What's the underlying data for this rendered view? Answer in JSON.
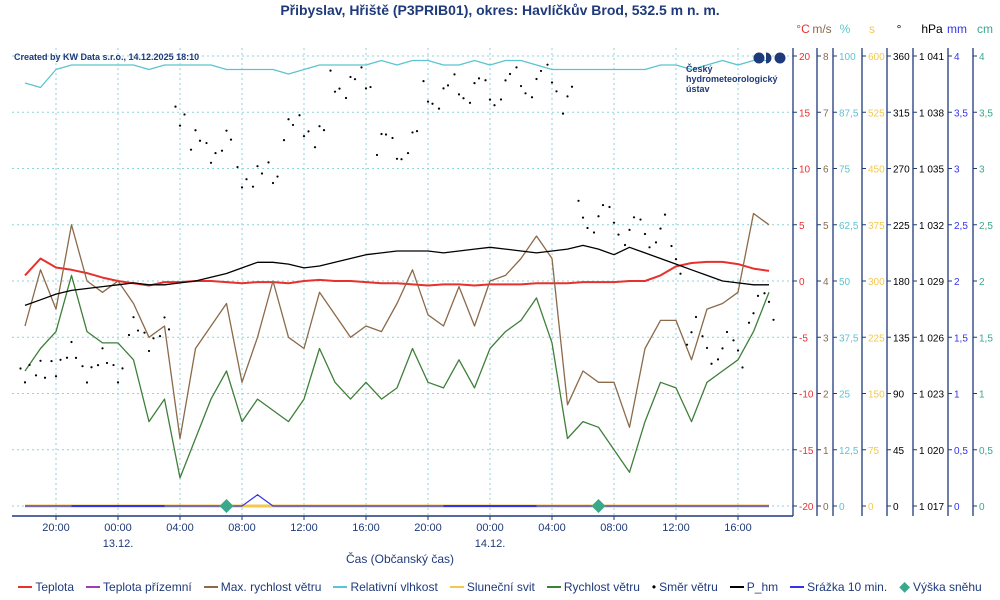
{
  "title": "Přibyslav, Hřiště (P3PRIB01), okres: Havlíčkův Brod, 532.5 m n. m.",
  "created_by": "Created by KW Data s.r.o., 14.12.2025 18:10",
  "logo": {
    "line1": "Český",
    "line2": "hydrometeorologický",
    "line3": "ústav"
  },
  "chart_data": {
    "type": "line",
    "title": "Přibyslav, Hřiště (P3PRIB01), okres: Havlíčkův Brod, 532.5 m n. m.",
    "xlabel": "Čas (Občanský čas)",
    "x_start": "12.12. 18:00",
    "x_step_hours": 1,
    "x_ticks": [
      "20:00",
      "00:00",
      "04:00",
      "08:00",
      "12:00",
      "16:00",
      "20:00",
      "00:00",
      "04:00",
      "08:00",
      "12:00",
      "16:00"
    ],
    "x_date_labels": [
      {
        "tick": 1,
        "label": "13.12."
      },
      {
        "tick": 7,
        "label": "14.12."
      }
    ],
    "axes": [
      {
        "unit": "°C",
        "color": "#e8302c",
        "min": -20,
        "max": 20,
        "ticks": [
          "-20",
          "-15",
          "-10",
          "-5",
          "0",
          "5",
          "10",
          "15",
          "20"
        ]
      },
      {
        "unit": "m/s",
        "color": "#8b6a4a",
        "min": 0,
        "max": 8,
        "ticks": [
          "0",
          "1",
          "2",
          "3",
          "4",
          "5",
          "6",
          "7",
          "8"
        ]
      },
      {
        "unit": "%",
        "color": "#5bc4d0",
        "min": 0,
        "max": 100,
        "ticks": [
          "0",
          "12,5",
          "25",
          "37,5",
          "50",
          "62,5",
          "75",
          "87,5",
          "100"
        ]
      },
      {
        "unit": "s",
        "color": "#f2c94c",
        "min": 0,
        "max": 600,
        "ticks": [
          "0",
          "75",
          "150",
          "225",
          "300",
          "375",
          "450",
          "525",
          "600"
        ]
      },
      {
        "unit": "°",
        "color": "#000000",
        "min": 0,
        "max": 360,
        "ticks": [
          "0",
          "45",
          "90",
          "135",
          "180",
          "225",
          "270",
          "315",
          "360"
        ]
      },
      {
        "unit": "hPa",
        "color": "#000000",
        "min": 1017,
        "max": 1041,
        "ticks": [
          "1 017",
          "1 020",
          "1 023",
          "1 026",
          "1 029",
          "1 032",
          "1 035",
          "1 038",
          "1 041"
        ]
      },
      {
        "unit": "mm",
        "color": "#3333ee",
        "min": 0,
        "max": 4,
        "ticks": [
          "0",
          "0,5",
          "1",
          "1,5",
          "2",
          "2,5",
          "3",
          "3,5",
          "4"
        ]
      },
      {
        "unit": "cm",
        "color": "#3aa88a",
        "min": 0,
        "max": 4,
        "ticks": [
          "0",
          "0,5",
          "1",
          "1,5",
          "2",
          "2,5",
          "3",
          "3,5",
          "4"
        ]
      }
    ],
    "series": [
      {
        "name": "Teplota",
        "color": "#e8302c",
        "axis": 0,
        "values": [
          0.5,
          2.0,
          1.2,
          1.0,
          0.7,
          0.3,
          0.0,
          -0.2,
          -0.4,
          -0.1,
          -0.1,
          0.0,
          0.0,
          -0.1,
          -0.2,
          -0.1,
          -0.1,
          -0.2,
          0.0,
          0.1,
          0.0,
          0.0,
          -0.1,
          -0.2,
          -0.2,
          -0.3,
          -0.4,
          -0.3,
          -0.3,
          -0.4,
          -0.3,
          -0.3,
          -0.3,
          -0.2,
          -0.2,
          -0.2,
          -0.1,
          -0.1,
          -0.1,
          0.0,
          0.0,
          0.5,
          1.3,
          1.6,
          1.7,
          1.7,
          1.5,
          1.1,
          0.9
        ]
      },
      {
        "name": "Teplota přízemní",
        "color": "#9b3fb5",
        "axis": 0,
        "values": []
      },
      {
        "name": "Max. rychlost větru",
        "color": "#8b6a4a",
        "axis": 1,
        "values": [
          3.2,
          4.2,
          3.5,
          5.0,
          4.0,
          3.8,
          4.0,
          3.6,
          3.0,
          3.2,
          1.2,
          2.8,
          3.2,
          3.6,
          2.2,
          3.0,
          4.0,
          3.0,
          2.8,
          3.8,
          3.4,
          3.0,
          3.2,
          3.1,
          3.6,
          4.2,
          3.4,
          3.2,
          3.9,
          3.2,
          4.0,
          4.1,
          4.4,
          4.8,
          4.4,
          1.8,
          2.4,
          2.2,
          2.2,
          1.4,
          2.8,
          3.3,
          3.3,
          2.6,
          3.5,
          3.6,
          3.8,
          5.2,
          5.0
        ]
      },
      {
        "name": "Relativní vlhkost",
        "color": "#5bc4d0",
        "axis": 2,
        "values": [
          94,
          93,
          97,
          98,
          98,
          98,
          98,
          98,
          97,
          98,
          98,
          98,
          98,
          97,
          97,
          97,
          97,
          96,
          97,
          98,
          98,
          98,
          98,
          99,
          98,
          99,
          99,
          98,
          98,
          99,
          98,
          99,
          99,
          98,
          97,
          97,
          97,
          97,
          97,
          97,
          97,
          98,
          98,
          97,
          98,
          99,
          98,
          99,
          99
        ]
      },
      {
        "name": "Sluneční svit",
        "color": "#f2c94c",
        "axis": 3,
        "values": [
          0,
          0,
          0,
          0,
          0,
          0,
          0,
          0,
          0,
          0,
          0,
          0,
          0,
          0,
          0,
          0,
          0,
          0,
          0,
          0,
          0,
          0,
          0,
          0,
          0,
          0,
          0,
          0,
          0,
          0,
          0,
          0,
          0,
          0,
          0,
          0,
          0,
          0,
          0,
          0,
          0,
          0,
          0,
          0,
          0,
          0,
          0,
          0,
          0
        ]
      },
      {
        "name": "Rychlost větru",
        "color": "#3f7f3a",
        "axis": 1,
        "values": [
          2.4,
          2.8,
          3.1,
          4.1,
          3.1,
          2.9,
          2.9,
          2.6,
          1.5,
          1.9,
          0.5,
          1.2,
          1.9,
          2.4,
          1.5,
          1.9,
          1.7,
          1.5,
          1.9,
          2.8,
          2.2,
          1.9,
          2.2,
          1.9,
          2.1,
          2.8,
          2.2,
          2.1,
          2.6,
          2.1,
          2.8,
          3.1,
          3.3,
          3.7,
          2.9,
          1.2,
          1.5,
          1.4,
          1.0,
          0.6,
          1.5,
          2.2,
          2.1,
          1.5,
          2.2,
          2.4,
          2.6,
          3.1,
          3.8
        ]
      },
      {
        "name": "Směr větru",
        "color": "#000000",
        "axis": 4,
        "marker": "dot",
        "values": [
          110,
          105,
          115,
          120,
          110,
          115,
          110,
          140,
          135,
          140,
          315,
          290,
          285,
          290,
          265,
          262,
          268,
          300,
          305,
          295,
          340,
          335,
          342,
          290,
          285,
          292,
          330,
          328,
          335,
          333,
          330,
          336,
          340,
          338,
          342,
          325,
          233,
          230,
          228,
          220,
          218,
          222,
          197,
          140,
          125,
          128,
          122,
          157,
          160
        ]
      },
      {
        "name": "P_hm",
        "color": "#000000",
        "axis": 5,
        "values": [
          1027.7,
          1028.0,
          1028.3,
          1028.5,
          1028.6,
          1028.7,
          1028.8,
          1028.9,
          1028.8,
          1028.8,
          1028.9,
          1029.0,
          1029.2,
          1029.4,
          1029.7,
          1030.0,
          1030.0,
          1029.9,
          1029.7,
          1029.8,
          1030.0,
          1030.2,
          1030.4,
          1030.5,
          1030.6,
          1030.6,
          1030.6,
          1030.5,
          1030.6,
          1030.7,
          1030.8,
          1030.7,
          1030.6,
          1030.5,
          1030.6,
          1030.7,
          1030.9,
          1030.7,
          1030.4,
          1030.8,
          1030.5,
          1030.2,
          1029.9,
          1029.6,
          1029.3,
          1029.0,
          1028.9,
          1028.8,
          1028.8
        ]
      },
      {
        "name": "Srážka 10 min.",
        "color": "#3333ee",
        "axis": 6,
        "values": [
          0,
          0,
          0,
          0,
          0,
          0,
          0,
          0,
          0,
          0,
          0,
          0,
          0,
          0,
          0,
          0.1,
          0,
          0,
          0,
          0,
          0,
          0,
          0,
          0,
          0,
          0,
          0,
          0,
          0,
          0,
          0,
          0,
          0,
          0,
          0,
          0,
          0,
          0,
          0,
          0,
          0,
          0,
          0,
          0,
          0,
          0,
          0,
          0,
          0
        ]
      },
      {
        "name": "Výška sněhu",
        "color": "#3aa88a",
        "axis": 7,
        "marker": "diamond",
        "points": [
          {
            "x": "13.12. 07:00",
            "hour": 13,
            "value": 0
          },
          {
            "x": "14.12. 07:00",
            "hour": 37,
            "value": 0
          }
        ]
      }
    ],
    "legend_position": "bottom",
    "grid": true
  }
}
